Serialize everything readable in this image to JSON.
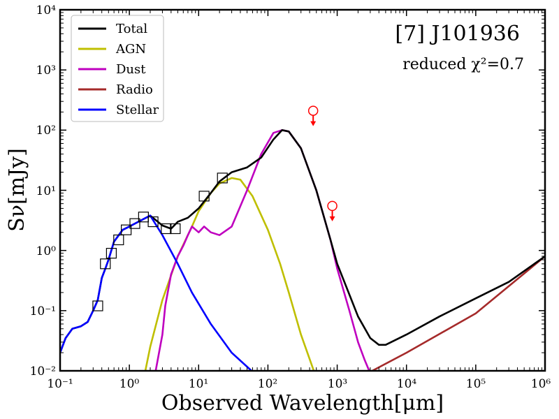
{
  "chart_data": {
    "type": "line",
    "title": "[7] J101936",
    "subtitle": "reduced χ²=0.7",
    "xlabel": "Observed Wavelength[μm]",
    "ylabel": "Sν[mJy]",
    "xscale": "log",
    "yscale": "log",
    "xlim": [
      0.1,
      1000000
    ],
    "ylim": [
      0.01,
      10000
    ],
    "x_tick_labels": [
      "10⁻¹",
      "10⁰",
      "10¹",
      "10²",
      "10³",
      "10⁴",
      "10⁵",
      "10⁶"
    ],
    "y_tick_labels": [
      "10⁻²",
      "10⁻¹",
      "10⁰",
      "10¹",
      "10²",
      "10³",
      "10⁴"
    ],
    "legend_position": "top-left",
    "series": [
      {
        "name": "Total",
        "color": "#000000",
        "x": [
          0.1,
          0.12,
          0.15,
          0.2,
          0.25,
          0.3,
          0.35,
          0.4,
          0.45,
          0.5,
          0.6,
          0.8,
          1.0,
          1.5,
          2.0,
          3.0,
          4.0,
          5.0,
          7.0,
          10.0,
          15.0,
          20.0,
          30.0,
          50.0,
          80.0,
          120.0,
          160.0,
          200.0,
          300.0,
          500.0,
          800.0,
          1000.0,
          2000.0,
          3000.0,
          4000.0,
          5000.0,
          10000.0,
          30000.0,
          100000.0,
          300000.0,
          1000000.0
        ],
        "y": [
          0.02,
          0.035,
          0.05,
          0.055,
          0.065,
          0.1,
          0.15,
          0.35,
          0.5,
          0.7,
          1.4,
          2.2,
          2.5,
          3.2,
          3.8,
          2.6,
          2.3,
          3.0,
          3.5,
          5.0,
          9.0,
          14.0,
          20.0,
          24.0,
          35.0,
          70.0,
          100.0,
          95.0,
          50.0,
          10.0,
          1.5,
          0.6,
          0.08,
          0.035,
          0.027,
          0.027,
          0.04,
          0.08,
          0.16,
          0.3,
          0.8
        ]
      },
      {
        "name": "AGN",
        "color": "#bfbf00",
        "x": [
          1.7,
          2.0,
          3.0,
          5.0,
          8.0,
          10.0,
          15.0,
          20.0,
          30.0,
          40.0,
          60.0,
          100.0,
          150.0,
          200.0,
          300.0,
          460.0
        ],
        "y": [
          0.01,
          0.025,
          0.15,
          0.8,
          2.5,
          4.5,
          9.0,
          13.0,
          16.0,
          15.0,
          8.0,
          2.2,
          0.6,
          0.2,
          0.04,
          0.01
        ]
      },
      {
        "name": "Dust",
        "color": "#bf00bf",
        "x": [
          2.4,
          3.0,
          3.3,
          4.0,
          5.0,
          6.0,
          7.0,
          8.0,
          10.0,
          12.0,
          15.0,
          20.0,
          30.0,
          50.0,
          80.0,
          120.0,
          160.0,
          200.0,
          300.0,
          500.0,
          800.0,
          1000.0,
          1500.0,
          2000.0,
          2500.0,
          2900.0
        ],
        "y": [
          0.01,
          0.04,
          0.12,
          0.4,
          0.8,
          1.2,
          1.8,
          2.5,
          2.0,
          2.5,
          2.0,
          1.8,
          2.5,
          10.0,
          40.0,
          90.0,
          100.0,
          95.0,
          50.0,
          10.0,
          1.5,
          0.5,
          0.1,
          0.03,
          0.015,
          0.01
        ]
      },
      {
        "name": "Radio",
        "color": "#a52a2a",
        "x": [
          3200.0,
          10000.0,
          100000.0,
          1000000.0
        ],
        "y": [
          0.01,
          0.02,
          0.09,
          0.8
        ]
      },
      {
        "name": "Stellar",
        "color": "#0000ff",
        "x": [
          0.1,
          0.12,
          0.15,
          0.2,
          0.25,
          0.3,
          0.35,
          0.4,
          0.45,
          0.5,
          0.6,
          0.8,
          1.0,
          1.5,
          2.0,
          3.0,
          5.0,
          8.0,
          15.0,
          30.0,
          58.0
        ],
        "y": [
          0.02,
          0.035,
          0.05,
          0.055,
          0.065,
          0.1,
          0.15,
          0.35,
          0.5,
          0.7,
          1.4,
          2.2,
          2.5,
          3.2,
          3.8,
          1.8,
          0.6,
          0.2,
          0.06,
          0.02,
          0.01
        ]
      }
    ],
    "observed_points": {
      "x": [
        0.35,
        0.45,
        0.55,
        0.7,
        0.9,
        1.2,
        1.6,
        2.2,
        3.4,
        4.6,
        12.0,
        22.0
      ],
      "y": [
        0.12,
        0.6,
        0.9,
        1.5,
        2.2,
        2.8,
        3.6,
        3.0,
        2.3,
        2.3,
        8.0,
        16.0
      ]
    },
    "upper_limits": {
      "x": [
        450,
        850
      ],
      "y": [
        210,
        5.5
      ]
    }
  }
}
